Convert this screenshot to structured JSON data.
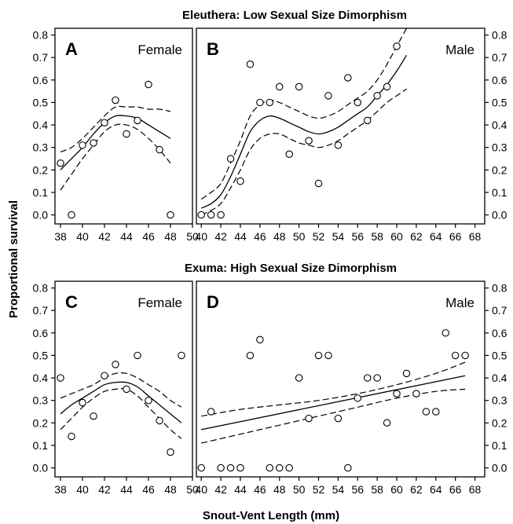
{
  "figure": {
    "title_top": "Eleuthera: Low Sexual Size Dimorphism",
    "title_bottom": "Exuma: High Sexual Size Dimorphism",
    "ylabel": "Proportional survival",
    "xlabel": "Snout-Vent Length (mm)"
  },
  "chart_data": [
    {
      "panel": "A",
      "label": "Female",
      "type": "scatter",
      "xlim": [
        37.5,
        50
      ],
      "ylim": [
        -0.04,
        0.83
      ],
      "xticks": [
        38,
        40,
        42,
        44,
        46,
        48,
        50
      ],
      "yticks": [
        0.0,
        0.1,
        0.2,
        0.3,
        0.4,
        0.5,
        0.6,
        0.7,
        0.8
      ],
      "yaxis": "left",
      "points": [
        [
          38,
          0.23
        ],
        [
          39,
          0.0
        ],
        [
          40,
          0.31
        ],
        [
          41,
          0.32
        ],
        [
          42,
          0.41
        ],
        [
          43,
          0.51
        ],
        [
          44,
          0.36
        ],
        [
          45,
          0.42
        ],
        [
          46,
          0.58
        ],
        [
          47,
          0.29
        ],
        [
          48,
          0.0
        ]
      ],
      "fit": [
        [
          38,
          0.2
        ],
        [
          39,
          0.25
        ],
        [
          40,
          0.3
        ],
        [
          41,
          0.36
        ],
        [
          42,
          0.41
        ],
        [
          43,
          0.44
        ],
        [
          44,
          0.44
        ],
        [
          45,
          0.43
        ],
        [
          46,
          0.4
        ],
        [
          47,
          0.37
        ],
        [
          48,
          0.34
        ]
      ],
      "ci_upper": [
        [
          38,
          0.28
        ],
        [
          39,
          0.3
        ],
        [
          40,
          0.34
        ],
        [
          41,
          0.39
        ],
        [
          42,
          0.44
        ],
        [
          43,
          0.48
        ],
        [
          44,
          0.48
        ],
        [
          45,
          0.48
        ],
        [
          46,
          0.47
        ],
        [
          47,
          0.47
        ],
        [
          48,
          0.46
        ]
      ],
      "ci_lower": [
        [
          38,
          0.11
        ],
        [
          39,
          0.18
        ],
        [
          40,
          0.25
        ],
        [
          41,
          0.31
        ],
        [
          42,
          0.37
        ],
        [
          43,
          0.4
        ],
        [
          44,
          0.4
        ],
        [
          45,
          0.38
        ],
        [
          46,
          0.34
        ],
        [
          47,
          0.29
        ],
        [
          48,
          0.23
        ]
      ]
    },
    {
      "panel": "B",
      "label": "Male",
      "type": "scatter",
      "xlim": [
        39.5,
        69
      ],
      "ylim": [
        -0.04,
        0.83
      ],
      "xticks": [
        40,
        42,
        44,
        46,
        48,
        50,
        52,
        54,
        56,
        58,
        60,
        62,
        64,
        66,
        68
      ],
      "yticks": [
        0.0,
        0.1,
        0.2,
        0.3,
        0.4,
        0.5,
        0.6,
        0.7,
        0.8
      ],
      "yaxis": "right",
      "points": [
        [
          40,
          0.0
        ],
        [
          41,
          0.0
        ],
        [
          42,
          0.0
        ],
        [
          43,
          0.25
        ],
        [
          44,
          0.15
        ],
        [
          45,
          0.67
        ],
        [
          46,
          0.5
        ],
        [
          47,
          0.5
        ],
        [
          48,
          0.57
        ],
        [
          49,
          0.27
        ],
        [
          50,
          0.57
        ],
        [
          51,
          0.33
        ],
        [
          52,
          0.14
        ],
        [
          53,
          0.53
        ],
        [
          54,
          0.31
        ],
        [
          55,
          0.61
        ],
        [
          56,
          0.5
        ],
        [
          57,
          0.42
        ],
        [
          58,
          0.53
        ],
        [
          59,
          0.57
        ],
        [
          60,
          0.75
        ]
      ],
      "fit": [
        [
          40,
          0.03
        ],
        [
          41,
          0.05
        ],
        [
          42,
          0.09
        ],
        [
          43,
          0.17
        ],
        [
          44,
          0.27
        ],
        [
          45,
          0.37
        ],
        [
          46,
          0.42
        ],
        [
          47,
          0.44
        ],
        [
          48,
          0.43
        ],
        [
          49,
          0.41
        ],
        [
          50,
          0.39
        ],
        [
          51,
          0.37
        ],
        [
          52,
          0.36
        ],
        [
          53,
          0.37
        ],
        [
          54,
          0.39
        ],
        [
          55,
          0.42
        ],
        [
          56,
          0.45
        ],
        [
          57,
          0.48
        ],
        [
          58,
          0.53
        ],
        [
          59,
          0.58
        ],
        [
          60,
          0.64
        ],
        [
          61,
          0.71
        ]
      ],
      "ci_upper": [
        [
          40,
          0.07
        ],
        [
          41,
          0.1
        ],
        [
          42,
          0.14
        ],
        [
          43,
          0.23
        ],
        [
          44,
          0.33
        ],
        [
          45,
          0.44
        ],
        [
          46,
          0.49
        ],
        [
          47,
          0.51
        ],
        [
          48,
          0.5
        ],
        [
          49,
          0.48
        ],
        [
          50,
          0.46
        ],
        [
          51,
          0.44
        ],
        [
          52,
          0.43
        ],
        [
          53,
          0.44
        ],
        [
          54,
          0.46
        ],
        [
          55,
          0.49
        ],
        [
          56,
          0.52
        ],
        [
          57,
          0.55
        ],
        [
          58,
          0.6
        ],
        [
          59,
          0.67
        ],
        [
          60,
          0.75
        ],
        [
          61,
          0.83
        ]
      ],
      "ci_lower": [
        [
          40,
          0.0
        ],
        [
          41,
          0.02
        ],
        [
          42,
          0.05
        ],
        [
          43,
          0.12
        ],
        [
          44,
          0.2
        ],
        [
          45,
          0.29
        ],
        [
          46,
          0.34
        ],
        [
          47,
          0.36
        ],
        [
          48,
          0.36
        ],
        [
          49,
          0.34
        ],
        [
          50,
          0.32
        ],
        [
          51,
          0.31
        ],
        [
          52,
          0.3
        ],
        [
          53,
          0.31
        ],
        [
          54,
          0.33
        ],
        [
          55,
          0.36
        ],
        [
          56,
          0.39
        ],
        [
          57,
          0.42
        ],
        [
          58,
          0.46
        ],
        [
          59,
          0.5
        ],
        [
          60,
          0.53
        ],
        [
          61,
          0.56
        ]
      ]
    },
    {
      "panel": "C",
      "label": "Female",
      "type": "scatter",
      "xlim": [
        37.5,
        50
      ],
      "ylim": [
        -0.04,
        0.83
      ],
      "xticks": [
        38,
        40,
        42,
        44,
        46,
        48,
        50
      ],
      "yticks": [
        0.0,
        0.1,
        0.2,
        0.3,
        0.4,
        0.5,
        0.6,
        0.7,
        0.8
      ],
      "yaxis": "left",
      "points": [
        [
          38,
          0.4
        ],
        [
          39,
          0.14
        ],
        [
          40,
          0.29
        ],
        [
          41,
          0.23
        ],
        [
          42,
          0.41
        ],
        [
          43,
          0.46
        ],
        [
          44,
          0.35
        ],
        [
          45,
          0.5
        ],
        [
          46,
          0.3
        ],
        [
          47,
          0.21
        ],
        [
          48,
          0.07
        ],
        [
          49,
          0.5
        ]
      ],
      "fit": [
        [
          38,
          0.24
        ],
        [
          39,
          0.28
        ],
        [
          40,
          0.31
        ],
        [
          41,
          0.34
        ],
        [
          42,
          0.37
        ],
        [
          43,
          0.38
        ],
        [
          44,
          0.38
        ],
        [
          45,
          0.36
        ],
        [
          46,
          0.32
        ],
        [
          47,
          0.28
        ],
        [
          48,
          0.24
        ],
        [
          49,
          0.2
        ]
      ],
      "ci_upper": [
        [
          38,
          0.31
        ],
        [
          39,
          0.33
        ],
        [
          40,
          0.35
        ],
        [
          41,
          0.37
        ],
        [
          42,
          0.4
        ],
        [
          43,
          0.42
        ],
        [
          44,
          0.42
        ],
        [
          45,
          0.4
        ],
        [
          46,
          0.37
        ],
        [
          47,
          0.34
        ],
        [
          48,
          0.3
        ],
        [
          49,
          0.27
        ]
      ],
      "ci_lower": [
        [
          38,
          0.17
        ],
        [
          39,
          0.22
        ],
        [
          40,
          0.27
        ],
        [
          41,
          0.31
        ],
        [
          42,
          0.34
        ],
        [
          43,
          0.35
        ],
        [
          44,
          0.35
        ],
        [
          45,
          0.32
        ],
        [
          46,
          0.27
        ],
        [
          47,
          0.22
        ],
        [
          48,
          0.17
        ],
        [
          49,
          0.13
        ]
      ]
    },
    {
      "panel": "D",
      "label": "Male",
      "type": "scatter",
      "xlim": [
        39.5,
        69
      ],
      "ylim": [
        -0.04,
        0.83
      ],
      "xticks": [
        40,
        42,
        44,
        46,
        48,
        50,
        52,
        54,
        56,
        58,
        60,
        62,
        64,
        66,
        68
      ],
      "yticks": [
        0.0,
        0.1,
        0.2,
        0.3,
        0.4,
        0.5,
        0.6,
        0.7,
        0.8
      ],
      "yaxis": "right",
      "points": [
        [
          40,
          0.0
        ],
        [
          41,
          0.25
        ],
        [
          42,
          0.0
        ],
        [
          43,
          0.0
        ],
        [
          44,
          0.0
        ],
        [
          45,
          0.5
        ],
        [
          46,
          0.57
        ],
        [
          47,
          0.0
        ],
        [
          48,
          0.0
        ],
        [
          49,
          0.0
        ],
        [
          50,
          0.4
        ],
        [
          51,
          0.22
        ],
        [
          52,
          0.5
        ],
        [
          53,
          0.5
        ],
        [
          54,
          0.22
        ],
        [
          55,
          0.0
        ],
        [
          56,
          0.31
        ],
        [
          57,
          0.4
        ],
        [
          58,
          0.4
        ],
        [
          59,
          0.2
        ],
        [
          60,
          0.33
        ],
        [
          61,
          0.42
        ],
        [
          62,
          0.33
        ],
        [
          63,
          0.25
        ],
        [
          64,
          0.25
        ],
        [
          65,
          0.6
        ],
        [
          66,
          0.5
        ],
        [
          67,
          0.5
        ]
      ],
      "fit": [
        [
          40,
          0.17
        ],
        [
          67,
          0.41
        ]
      ],
      "ci_upper": [
        [
          40,
          0.23
        ],
        [
          44,
          0.26
        ],
        [
          48,
          0.28
        ],
        [
          52,
          0.3
        ],
        [
          56,
          0.33
        ],
        [
          60,
          0.37
        ],
        [
          64,
          0.42
        ],
        [
          67,
          0.47
        ]
      ],
      "ci_lower": [
        [
          40,
          0.11
        ],
        [
          44,
          0.15
        ],
        [
          48,
          0.19
        ],
        [
          52,
          0.23
        ],
        [
          56,
          0.27
        ],
        [
          60,
          0.31
        ],
        [
          64,
          0.34
        ],
        [
          67,
          0.35
        ]
      ]
    }
  ]
}
